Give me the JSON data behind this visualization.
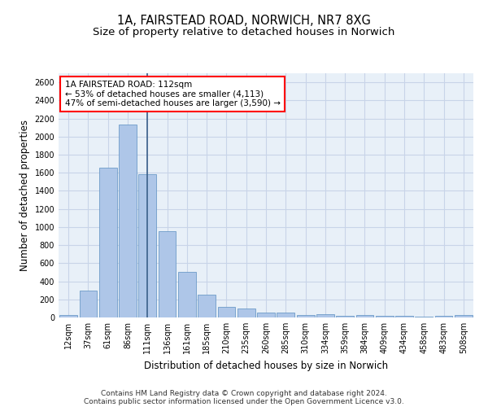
{
  "title_line1": "1A, FAIRSTEAD ROAD, NORWICH, NR7 8XG",
  "title_line2": "Size of property relative to detached houses in Norwich",
  "xlabel": "Distribution of detached houses by size in Norwich",
  "ylabel": "Number of detached properties",
  "bar_labels": [
    "12sqm",
    "37sqm",
    "61sqm",
    "86sqm",
    "111sqm",
    "136sqm",
    "161sqm",
    "185sqm",
    "210sqm",
    "235sqm",
    "260sqm",
    "285sqm",
    "310sqm",
    "334sqm",
    "359sqm",
    "384sqm",
    "409sqm",
    "434sqm",
    "458sqm",
    "483sqm",
    "508sqm"
  ],
  "bar_values": [
    25,
    300,
    1660,
    2130,
    1580,
    955,
    500,
    250,
    120,
    100,
    50,
    50,
    30,
    35,
    20,
    25,
    20,
    20,
    5,
    20,
    25
  ],
  "bar_color": "#aec6e8",
  "bar_edge_color": "#5a8fc0",
  "vline_x": 4,
  "vline_color": "#3a5f8a",
  "annotation_text": "1A FAIRSTEAD ROAD: 112sqm\n← 53% of detached houses are smaller (4,113)\n47% of semi-detached houses are larger (3,590) →",
  "annotation_box_color": "white",
  "annotation_box_edge_color": "red",
  "ylim": [
    0,
    2700
  ],
  "yticks": [
    0,
    200,
    400,
    600,
    800,
    1000,
    1200,
    1400,
    1600,
    1800,
    2000,
    2200,
    2400,
    2600
  ],
  "grid_color": "#c8d4e8",
  "background_color": "#e8f0f8",
  "footer_line1": "Contains HM Land Registry data © Crown copyright and database right 2024.",
  "footer_line2": "Contains public sector information licensed under the Open Government Licence v3.0.",
  "title_fontsize": 10.5,
  "subtitle_fontsize": 9.5,
  "tick_fontsize": 7,
  "ylabel_fontsize": 8.5,
  "xlabel_fontsize": 8.5,
  "footer_fontsize": 6.5,
  "annotation_fontsize": 7.5
}
